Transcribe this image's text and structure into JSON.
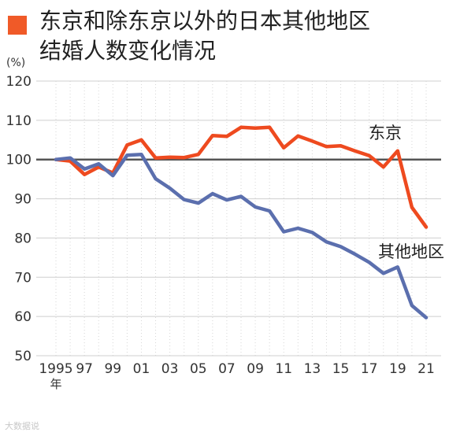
{
  "title_lines": [
    "东京和除东京以外的日本其他地区",
    "结婚人数变化情况"
  ],
  "colors": {
    "tokyo": "#ee4a1f",
    "other": "#5b6fae",
    "baseline": "#555555",
    "grid": "#cfcfcf",
    "marker": "#f05a28"
  },
  "watermark": "大数据说",
  "chart_data": {
    "type": "line",
    "unit_label": "(%)",
    "year_suffix": "年",
    "ylim": [
      50,
      120
    ],
    "yticks": [
      50,
      60,
      70,
      80,
      90,
      100,
      110,
      120
    ],
    "baseline": 100,
    "x": [
      1995,
      1996,
      1997,
      1998,
      1999,
      2000,
      2001,
      2002,
      2003,
      2004,
      2005,
      2006,
      2007,
      2008,
      2009,
      2010,
      2011,
      2012,
      2013,
      2014,
      2015,
      2016,
      2017,
      2018,
      2019,
      2020,
      2021
    ],
    "xticks": [
      {
        "year": 1995,
        "label": "1995"
      },
      {
        "year": 1997,
        "label": "97"
      },
      {
        "year": 1999,
        "label": "99"
      },
      {
        "year": 2001,
        "label": "01"
      },
      {
        "year": 2003,
        "label": "03"
      },
      {
        "year": 2005,
        "label": "05"
      },
      {
        "year": 2007,
        "label": "07"
      },
      {
        "year": 2009,
        "label": "09"
      },
      {
        "year": 2011,
        "label": "11"
      },
      {
        "year": 2013,
        "label": "13"
      },
      {
        "year": 2015,
        "label": "15"
      },
      {
        "year": 2017,
        "label": "17"
      },
      {
        "year": 2019,
        "label": "19"
      },
      {
        "year": 2021,
        "label": "21"
      }
    ],
    "series": [
      {
        "name": "东京",
        "color": "#ee4a1f",
        "values": [
          100,
          99.6,
          96.2,
          98.1,
          96.6,
          103.7,
          105.0,
          100.4,
          100.6,
          100.5,
          101.3,
          106.1,
          105.9,
          108.2,
          108.0,
          108.2,
          103.0,
          106.0,
          104.7,
          103.3,
          103.5,
          102.2,
          101.0,
          98.1,
          102.2,
          87.8,
          82.8
        ]
      },
      {
        "name": "其他地区",
        "color": "#5b6fae",
        "values": [
          100,
          100.4,
          97.6,
          98.9,
          95.9,
          101.1,
          101.3,
          95.1,
          92.7,
          89.8,
          88.9,
          91.3,
          89.7,
          90.6,
          87.9,
          86.9,
          81.6,
          82.5,
          81.4,
          79.0,
          77.8,
          75.9,
          73.8,
          71.0,
          72.6,
          62.8,
          59.7
        ]
      }
    ]
  }
}
